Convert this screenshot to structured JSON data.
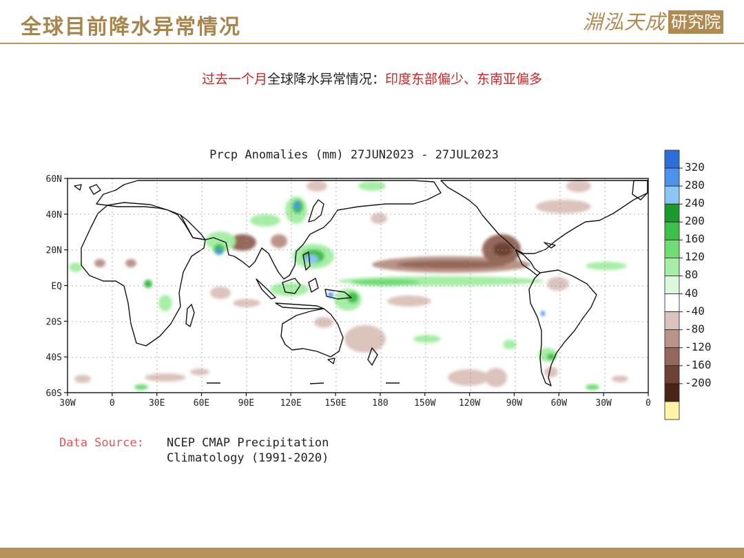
{
  "header": {
    "title": "全球目前降水异常情况",
    "logo_script": "淵泓天成",
    "logo_box": "研究院"
  },
  "subtitle": {
    "part1": "过去一个月",
    "part2": "全球降水异常情况：",
    "part3": "印度东部偏少、东南亚偏多"
  },
  "map": {
    "title": "Prcp Anomalies (mm) 27JUN2023 - 27JUL2023",
    "lat_labels": [
      "60N",
      "40N",
      "20N",
      "EQ",
      "20S",
      "40S",
      "60S"
    ],
    "lon_labels": [
      "30W",
      "0",
      "30E",
      "60E",
      "90E",
      "120E",
      "150E",
      "180",
      "150W",
      "120W",
      "90W",
      "60W",
      "30W",
      "0"
    ],
    "colorbar_labels": [
      "320",
      "280",
      "240",
      "200",
      "160",
      "120",
      "80",
      "40",
      "-40",
      "-80",
      "-120",
      "-160",
      "-200"
    ],
    "colorbar_colors": [
      "#2d6fd6",
      "#4a92ea",
      "#8cc4f4",
      "#1a9a2a",
      "#3cc04a",
      "#6fdc74",
      "#a6eea6",
      "#dcf8dc",
      "#ffffff",
      "#dcc3bc",
      "#b99488",
      "#94675a",
      "#6e4234",
      "#4a2416",
      "#fff4a6"
    ]
  },
  "source": {
    "label": "Data Source:",
    "line1": "NCEP CMAP Precipitation",
    "line2": "Climatology (1991-2020)"
  }
}
